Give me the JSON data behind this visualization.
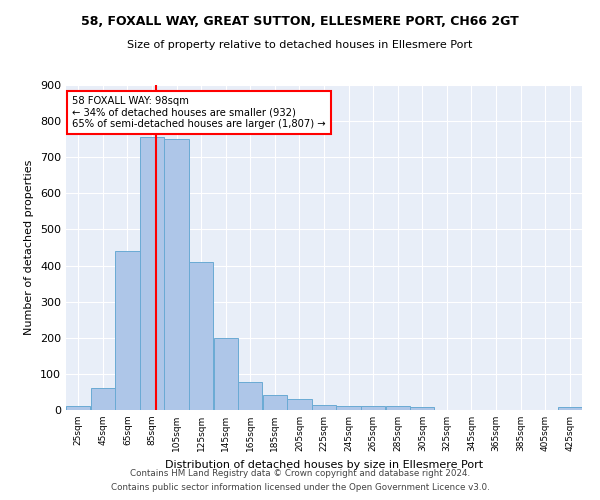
{
  "title1": "58, FOXALL WAY, GREAT SUTTON, ELLESMERE PORT, CH66 2GT",
  "title2": "Size of property relative to detached houses in Ellesmere Port",
  "xlabel": "Distribution of detached houses by size in Ellesmere Port",
  "ylabel": "Number of detached properties",
  "bar_color": "#aec6e8",
  "bar_edgecolor": "#6aaad4",
  "background_color": "#e8eef8",
  "grid_color": "#ffffff",
  "annotation_text": "58 FOXALL WAY: 98sqm\n← 34% of detached houses are smaller (932)\n65% of semi-detached houses are larger (1,807) →",
  "property_line_x": 98,
  "bins_left": [
    25,
    45,
    65,
    85,
    105,
    125,
    145,
    165,
    185,
    205,
    225,
    245,
    265,
    285,
    305,
    325,
    345,
    365,
    385,
    405,
    425
  ],
  "counts": [
    10,
    60,
    440,
    755,
    750,
    410,
    200,
    78,
    42,
    30,
    13,
    11,
    11,
    10,
    8,
    0,
    0,
    0,
    0,
    0,
    8
  ],
  "ylim": [
    0,
    900
  ],
  "yticks": [
    0,
    100,
    200,
    300,
    400,
    500,
    600,
    700,
    800,
    900
  ],
  "footnote1": "Contains HM Land Registry data © Crown copyright and database right 2024.",
  "footnote2": "Contains public sector information licensed under the Open Government Licence v3.0.",
  "bin_width": 20
}
